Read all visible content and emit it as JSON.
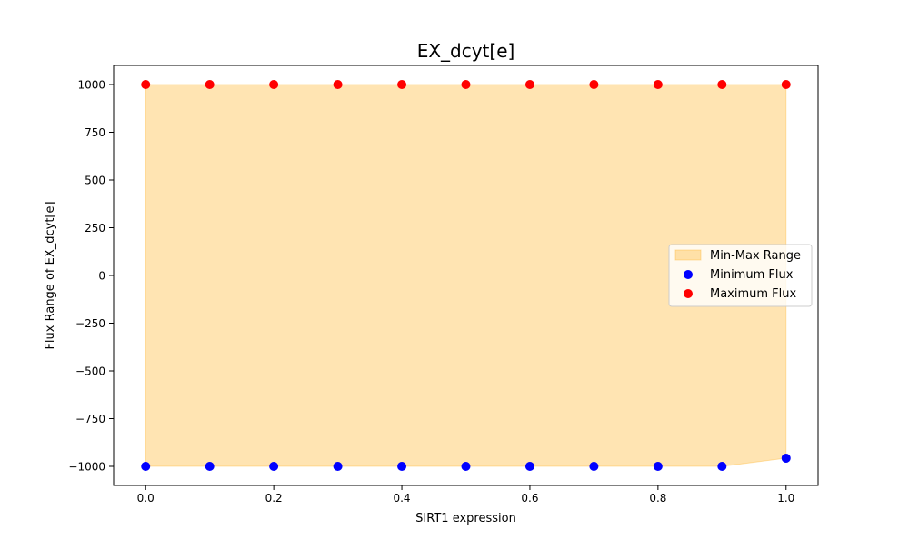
{
  "chart_data": {
    "type": "scatter",
    "title": "EX_dcyt[e]",
    "xlabel": "SIRT1 expression",
    "ylabel": "Flux Range of EX_dcyt[e]",
    "xlim": [
      -0.05,
      1.05
    ],
    "ylim": [
      -1100,
      1100
    ],
    "x_ticks": [
      0.0,
      0.2,
      0.4,
      0.6,
      0.8,
      1.0
    ],
    "x_tick_labels": [
      "0.0",
      "0.2",
      "0.4",
      "0.6",
      "0.8",
      "1.0"
    ],
    "y_ticks": [
      1000,
      750,
      500,
      250,
      0,
      -250,
      -500,
      -750,
      -1000
    ],
    "y_tick_labels": [
      "1000",
      "750",
      "500",
      "250",
      "0",
      "−250",
      "−500",
      "−750",
      "−1000"
    ],
    "grid": false,
    "legend_position": "center-right",
    "x": [
      0.0,
      0.1,
      0.2,
      0.3,
      0.4,
      0.5,
      0.6,
      0.7,
      0.8,
      0.9,
      1.0
    ],
    "series": [
      {
        "name": "Minimum Flux",
        "kind": "scatter",
        "color": "#0000ff",
        "values": [
          -1000,
          -1000,
          -1000,
          -1000,
          -1000,
          -1000,
          -1000,
          -1000,
          -1000,
          -1000,
          -957
        ]
      },
      {
        "name": "Maximum Flux",
        "kind": "scatter",
        "color": "#ff0000",
        "values": [
          1000,
          1000,
          1000,
          1000,
          1000,
          1000,
          1000,
          1000,
          1000,
          1000,
          1000
        ]
      }
    ],
    "range_fill": {
      "name": "Min-Max Range",
      "color": "#ffa500",
      "opacity": 0.3
    }
  }
}
